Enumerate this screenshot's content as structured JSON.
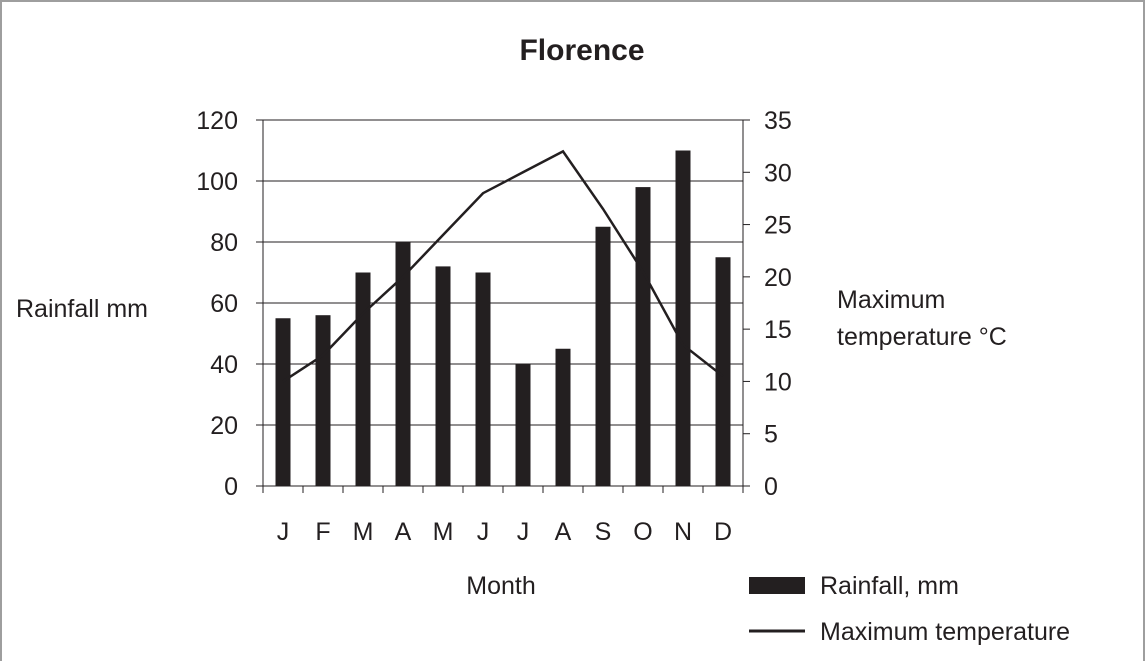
{
  "chart_data": {
    "type": "bar",
    "title": "Florence",
    "xlabel": "Month",
    "ylabel": "Rainfall mm",
    "y2label_lines": [
      "Maximum",
      "temperature °C"
    ],
    "categories": [
      "J",
      "F",
      "M",
      "A",
      "M",
      "J",
      "J",
      "A",
      "S",
      "O",
      "N",
      "D"
    ],
    "ylim": [
      0,
      120
    ],
    "y_ticks": [
      0,
      20,
      40,
      60,
      80,
      100,
      120
    ],
    "y2lim": [
      0,
      35
    ],
    "y2_ticks": [
      0,
      5,
      10,
      15,
      20,
      25,
      30,
      35
    ],
    "grid": "horizontal",
    "legend_position": "bottom-right",
    "series": [
      {
        "name": "Rainfall, mm",
        "type": "bar",
        "axis": "left",
        "color": "#231f20",
        "values": [
          55,
          56,
          70,
          80,
          72,
          70,
          40,
          45,
          85,
          98,
          110,
          75
        ]
      },
      {
        "name": "Maximum temperature",
        "type": "line",
        "axis": "right",
        "color": "#231f20",
        "values": [
          10,
          12.5,
          16.5,
          20,
          24,
          28,
          30,
          32,
          26.5,
          20.5,
          13.5,
          10.5
        ]
      }
    ]
  }
}
